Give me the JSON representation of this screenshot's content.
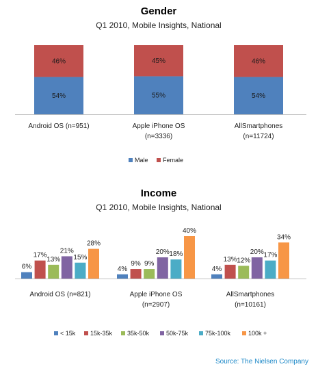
{
  "chart_data": [
    {
      "type": "bar",
      "stacked": true,
      "percent": true,
      "title": "Gender",
      "subtitle": "Q1 2010, Mobile Insights, National",
      "categories": [
        "Android OS (n=951)",
        "Apple iPhone OS (n=3336)",
        "AllSmartphones (n=11724)"
      ],
      "category_lines": [
        [
          "Android OS (n=951)"
        ],
        [
          "Apple iPhone OS",
          "(n=3336)"
        ],
        [
          "AllSmartphones",
          "(n=11724)"
        ]
      ],
      "series": [
        {
          "name": "Male",
          "values": [
            54,
            55,
            54
          ],
          "labels": [
            "54%",
            "55%",
            "54%"
          ],
          "color": "#4f81bd"
        },
        {
          "name": "Female",
          "values": [
            46,
            45,
            46
          ],
          "labels": [
            "46%",
            "45%",
            "46%"
          ],
          "color": "#c0504d"
        }
      ],
      "ylim": [
        0,
        100
      ],
      "grid": false,
      "legend": "bottom"
    },
    {
      "type": "bar",
      "title": "Income",
      "subtitle": "Q1 2010, Mobile Insights, National",
      "categories": [
        "Android OS (n=821)",
        "Apple iPhone OS (n=2907)",
        "AllSmartphones (n=10161)"
      ],
      "category_lines": [
        [
          "Android OS (n=821)"
        ],
        [
          "Apple iPhone OS",
          "(n=2907)"
        ],
        [
          "AllSmartphones",
          "(n=10161)"
        ]
      ],
      "series": [
        {
          "name": "< 15k",
          "values": [
            6,
            4,
            4
          ],
          "labels": [
            "6%",
            "4%",
            "4%"
          ],
          "color": "#4f81bd"
        },
        {
          "name": "15k-35k",
          "values": [
            17,
            9,
            13
          ],
          "labels": [
            "17%",
            "9%",
            "13%"
          ],
          "color": "#c0504d"
        },
        {
          "name": "35k-50k",
          "values": [
            13,
            9,
            12
          ],
          "labels": [
            "13%",
            "9%",
            "12%"
          ],
          "color": "#9bbb59"
        },
        {
          "name": "50k-75k",
          "values": [
            21,
            20,
            20
          ],
          "labels": [
            "21%",
            "20%",
            "20%"
          ],
          "color": "#8064a2"
        },
        {
          "name": "75k-100k",
          "values": [
            15,
            18,
            17
          ],
          "labels": [
            "15%",
            "18%",
            "17%"
          ],
          "color": "#4bacc6"
        },
        {
          "name": "100k +",
          "values": [
            28,
            40,
            34
          ],
          "labels": [
            "28%",
            "40%",
            "34%"
          ],
          "color": "#f79646"
        }
      ],
      "ylim": [
        0,
        40
      ],
      "grid": false,
      "legend": "bottom"
    }
  ],
  "source": "Source: The Nielsen Company"
}
